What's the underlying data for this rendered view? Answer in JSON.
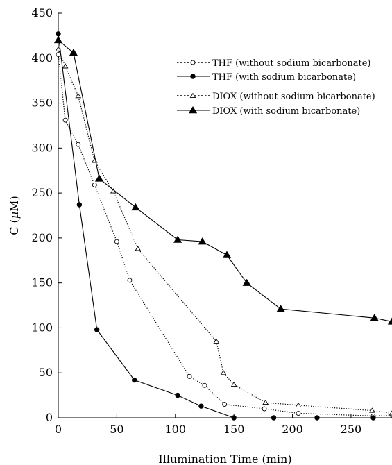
{
  "chart_data": {
    "type": "line",
    "title": "",
    "xlabel": "Illumination Time (min)",
    "ylabel_prefix": "C (",
    "ylabel_mu": "μ",
    "ylabel_suffix": "M)",
    "xlim": [
      0,
      285
    ],
    "ylim": [
      0,
      450
    ],
    "xticks": [
      0,
      50,
      100,
      150,
      200,
      250
    ],
    "yticks": [
      0,
      50,
      100,
      150,
      200,
      250,
      300,
      350,
      400,
      450
    ],
    "grid": false,
    "legend_position": "top-right",
    "series": [
      {
        "name": "THF (without sodium bicarbonate)",
        "line": "dotted",
        "marker": "open-circle",
        "points": [
          [
            0,
            404
          ],
          [
            6,
            331
          ],
          [
            17,
            304
          ],
          [
            31,
            259
          ],
          [
            50,
            196
          ],
          [
            61,
            153
          ],
          [
            112,
            46
          ],
          [
            125,
            36
          ],
          [
            142,
            15
          ],
          [
            176,
            10
          ],
          [
            205,
            5
          ],
          [
            269,
            2
          ],
          [
            285,
            3
          ]
        ]
      },
      {
        "name": "THF (with sodium bicarbonate)",
        "line": "solid",
        "marker": "filled-circle",
        "points": [
          [
            0,
            427
          ],
          [
            18,
            237
          ],
          [
            33,
            98
          ],
          [
            65,
            42
          ],
          [
            102,
            25
          ],
          [
            122,
            13
          ],
          [
            150,
            0
          ],
          [
            184,
            0
          ],
          [
            221,
            0
          ],
          [
            269,
            0
          ]
        ]
      },
      {
        "name": "DIOX (without sodium bicarbonate)",
        "line": "dotted",
        "marker": "open-triangle",
        "points": [
          [
            0,
            410
          ],
          [
            6,
            391
          ],
          [
            17,
            358
          ],
          [
            31,
            286
          ],
          [
            47,
            252
          ],
          [
            68,
            188
          ],
          [
            135,
            85
          ],
          [
            141,
            50
          ],
          [
            150,
            37
          ],
          [
            177,
            17
          ],
          [
            205,
            14
          ],
          [
            268,
            8
          ],
          [
            285,
            5
          ]
        ]
      },
      {
        "name": "DIOX (with sodium bicarbonate)",
        "line": "solid",
        "marker": "filled-triangle",
        "points": [
          [
            0,
            420
          ],
          [
            13,
            406
          ],
          [
            35,
            266
          ],
          [
            66,
            234
          ],
          [
            102,
            198
          ],
          [
            123,
            196
          ],
          [
            144,
            181
          ],
          [
            161,
            150
          ],
          [
            190,
            121
          ],
          [
            270,
            111
          ],
          [
            285,
            107
          ]
        ]
      }
    ]
  }
}
